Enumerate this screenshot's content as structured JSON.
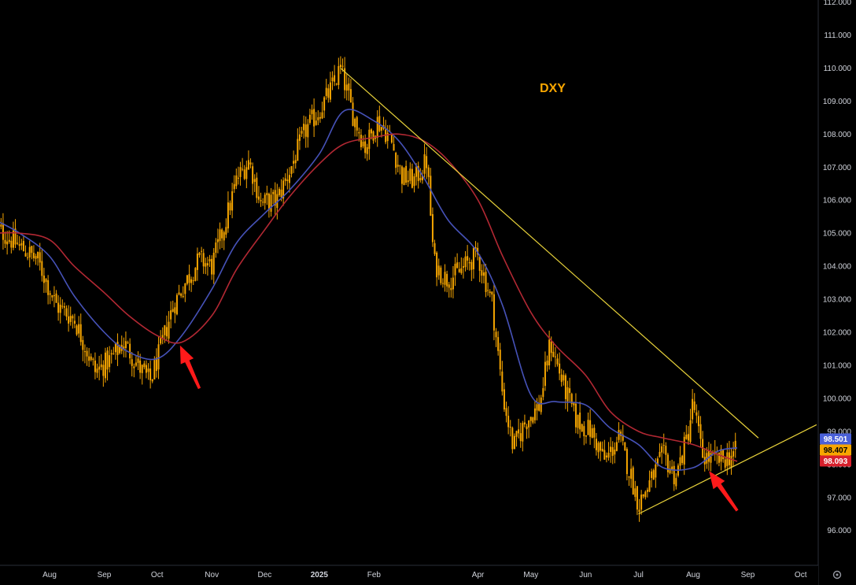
{
  "chart_data": {
    "type": "candlestick",
    "title": "DXY",
    "ylim": [
      95.4,
      112.0
    ],
    "y_ticks": [
      "96.000",
      "97.000",
      "98.000",
      "99.000",
      "100.000",
      "101.000",
      "102.000",
      "103.000",
      "104.000",
      "105.000",
      "106.000",
      "107.000",
      "108.000",
      "109.000",
      "110.000",
      "111.000",
      "112.000"
    ],
    "x_ticks": [
      {
        "label": "Aug",
        "date": "2024-08-01",
        "bold": false
      },
      {
        "label": "Sep",
        "date": "2024-09-01",
        "bold": false
      },
      {
        "label": "Oct",
        "date": "2024-10-01",
        "bold": false
      },
      {
        "label": "Nov",
        "date": "2024-11-01",
        "bold": false
      },
      {
        "label": "Dec",
        "date": "2024-12-01",
        "bold": false
      },
      {
        "label": "2025",
        "date": "2025-01-01",
        "bold": true
      },
      {
        "label": "Feb",
        "date": "2025-02-01",
        "bold": false
      },
      {
        "label": "Apr",
        "date": "2025-04-01",
        "bold": false
      },
      {
        "label": "May",
        "date": "2025-05-01",
        "bold": false
      },
      {
        "label": "Jun",
        "date": "2025-06-01",
        "bold": false
      },
      {
        "label": "Jul",
        "date": "2025-07-01",
        "bold": false
      },
      {
        "label": "Aug",
        "date": "2025-08-01",
        "bold": false
      },
      {
        "label": "Sep",
        "date": "2025-09-01",
        "bold": false
      },
      {
        "label": "Oct",
        "date": "2025-10-01",
        "bold": false
      }
    ],
    "price_path": [
      [
        "2024-07-01",
        105.2
      ],
      [
        "2024-07-15",
        104.6
      ],
      [
        "2024-07-25",
        104.2
      ],
      [
        "2024-08-05",
        102.8
      ],
      [
        "2024-08-15",
        102.4
      ],
      [
        "2024-08-27",
        100.8
      ],
      [
        "2024-09-05",
        101.2
      ],
      [
        "2024-09-12",
        101.7
      ],
      [
        "2024-09-20",
        101.0
      ],
      [
        "2024-09-27",
        100.5
      ],
      [
        "2024-10-03",
        101.5
      ],
      [
        "2024-10-10",
        102.8
      ],
      [
        "2024-10-18",
        103.6
      ],
      [
        "2024-10-25",
        104.2
      ],
      [
        "2024-11-01",
        104.0
      ],
      [
        "2024-11-08",
        105.2
      ],
      [
        "2024-11-15",
        106.6
      ],
      [
        "2024-11-22",
        107.2
      ],
      [
        "2024-11-29",
        105.9
      ],
      [
        "2024-12-08",
        106.0
      ],
      [
        "2024-12-16",
        107.0
      ],
      [
        "2024-12-24",
        108.1
      ],
      [
        "2025-01-02",
        108.8
      ],
      [
        "2025-01-10",
        109.6
      ],
      [
        "2025-01-13",
        110.0
      ],
      [
        "2025-01-20",
        108.6
      ],
      [
        "2025-01-27",
        107.6
      ],
      [
        "2025-02-03",
        108.4
      ],
      [
        "2025-02-10",
        107.9
      ],
      [
        "2025-02-17",
        106.7
      ],
      [
        "2025-02-24",
        106.6
      ],
      [
        "2025-03-03",
        107.2
      ],
      [
        "2025-03-07",
        104.1
      ],
      [
        "2025-03-14",
        103.6
      ],
      [
        "2025-03-21",
        103.8
      ],
      [
        "2025-03-28",
        104.2
      ],
      [
        "2025-04-01",
        104.3
      ],
      [
        "2025-04-09",
        102.9
      ],
      [
        "2025-04-15",
        100.1
      ],
      [
        "2025-04-21",
        98.5
      ],
      [
        "2025-04-28",
        99.3
      ],
      [
        "2025-05-06",
        99.8
      ],
      [
        "2025-05-12",
        101.7
      ],
      [
        "2025-05-20",
        100.3
      ],
      [
        "2025-05-27",
        99.3
      ],
      [
        "2025-06-04",
        99.0
      ],
      [
        "2025-06-12",
        98.1
      ],
      [
        "2025-06-20",
        98.8
      ],
      [
        "2025-06-27",
        97.6
      ],
      [
        "2025-07-01",
        96.8
      ],
      [
        "2025-07-08",
        97.5
      ],
      [
        "2025-07-15",
        98.3
      ],
      [
        "2025-07-22",
        97.6
      ],
      [
        "2025-07-29",
        98.9
      ],
      [
        "2025-08-01",
        99.9
      ],
      [
        "2025-08-06",
        98.3
      ],
      [
        "2025-08-13",
        98.1
      ],
      [
        "2025-08-20",
        98.2
      ],
      [
        "2025-08-26",
        98.4
      ]
    ],
    "series": [
      {
        "name": "",
        "color": "#4652b8",
        "kind": "moving-average",
        "points": [
          [
            "2024-07-01",
            105.4
          ],
          [
            "2024-07-15",
            105.0
          ],
          [
            "2024-08-01",
            104.3
          ],
          [
            "2024-08-15",
            103.1
          ],
          [
            "2024-09-01",
            102.0
          ],
          [
            "2024-09-15",
            101.4
          ],
          [
            "2024-10-01",
            101.2
          ],
          [
            "2024-10-15",
            101.9
          ],
          [
            "2024-11-01",
            103.3
          ],
          [
            "2024-11-15",
            104.7
          ],
          [
            "2024-12-01",
            105.6
          ],
          [
            "2024-12-15",
            106.3
          ],
          [
            "2025-01-01",
            107.4
          ],
          [
            "2025-01-15",
            108.7
          ],
          [
            "2025-02-01",
            108.4
          ],
          [
            "2025-02-15",
            107.8
          ],
          [
            "2025-03-01",
            106.7
          ],
          [
            "2025-03-15",
            105.4
          ],
          [
            "2025-04-01",
            104.4
          ],
          [
            "2025-04-15",
            102.8
          ],
          [
            "2025-05-01",
            100.1
          ],
          [
            "2025-05-15",
            99.9
          ],
          [
            "2025-06-01",
            99.8
          ],
          [
            "2025-06-15",
            99.1
          ],
          [
            "2025-07-01",
            98.6
          ],
          [
            "2025-07-15",
            97.9
          ],
          [
            "2025-08-01",
            97.9
          ],
          [
            "2025-08-15",
            98.4
          ],
          [
            "2025-08-26",
            98.501
          ]
        ]
      },
      {
        "name": "",
        "color": "#b22833",
        "kind": "moving-average",
        "points": [
          [
            "2024-07-01",
            105.0
          ],
          [
            "2024-07-15",
            105.0
          ],
          [
            "2024-08-01",
            104.8
          ],
          [
            "2024-08-15",
            104.0
          ],
          [
            "2024-09-01",
            103.2
          ],
          [
            "2024-09-15",
            102.5
          ],
          [
            "2024-10-01",
            101.9
          ],
          [
            "2024-10-15",
            101.7
          ],
          [
            "2024-11-01",
            102.5
          ],
          [
            "2024-11-15",
            103.9
          ],
          [
            "2024-12-01",
            105.1
          ],
          [
            "2024-12-15",
            106.1
          ],
          [
            "2025-01-01",
            107.1
          ],
          [
            "2025-01-15",
            107.7
          ],
          [
            "2025-02-01",
            107.9
          ],
          [
            "2025-02-15",
            108.0
          ],
          [
            "2025-03-01",
            107.8
          ],
          [
            "2025-03-15",
            107.2
          ],
          [
            "2025-04-01",
            106.0
          ],
          [
            "2025-04-15",
            104.3
          ],
          [
            "2025-05-01",
            102.6
          ],
          [
            "2025-05-15",
            101.6
          ],
          [
            "2025-06-01",
            100.7
          ],
          [
            "2025-06-15",
            99.6
          ],
          [
            "2025-07-01",
            99.0
          ],
          [
            "2025-07-15",
            98.8
          ],
          [
            "2025-08-01",
            98.6
          ],
          [
            "2025-08-15",
            98.3
          ],
          [
            "2025-08-26",
            98.093
          ]
        ]
      }
    ],
    "trendlines": [
      {
        "color": "#e8d23a",
        "from": [
          "2025-01-13",
          110.0
        ],
        "to": [
          "2025-09-07",
          98.8
        ]
      },
      {
        "color": "#e8d23a",
        "from": [
          "2025-07-01",
          96.5
        ],
        "to": [
          "2025-10-10",
          99.2
        ]
      }
    ],
    "arrows": [
      {
        "color": "#ff1a1a",
        "tip": [
          "2024-10-14",
          101.6
        ],
        "tail": [
          "2024-10-25",
          100.3
        ]
      },
      {
        "color": "#ff1a1a",
        "tip": [
          "2025-08-10",
          97.8
        ],
        "tail": [
          "2025-08-26",
          96.6
        ]
      }
    ],
    "price_badges": [
      {
        "value": "98.501",
        "bg": "#4a60d8",
        "light_text": true
      },
      {
        "value": "98.407",
        "bg": "#f7a600",
        "light_text": false
      },
      {
        "value": "98.093",
        "bg": "#d8202c",
        "light_text": true
      }
    ],
    "colors": {
      "candles": "#f7a600",
      "axis_text": "#d1d4dc",
      "background": "#000000"
    }
  },
  "settings_icon": "gear-icon"
}
